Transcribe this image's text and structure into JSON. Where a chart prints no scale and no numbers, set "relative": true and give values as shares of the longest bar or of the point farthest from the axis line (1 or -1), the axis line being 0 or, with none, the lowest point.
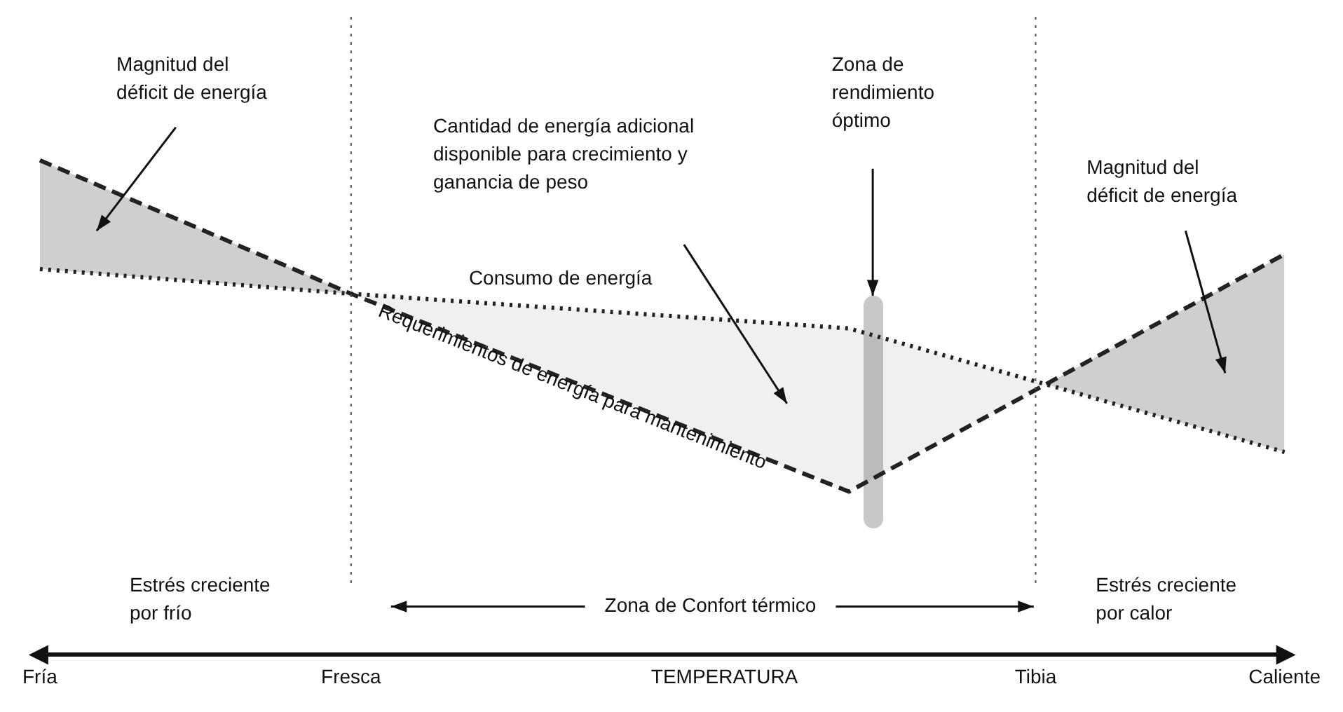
{
  "chart_data": {
    "type": "line",
    "relative": true,
    "categories": [
      "Fría",
      null,
      null,
      null,
      null,
      "Fresca",
      null,
      null,
      null,
      null,
      null,
      "TEMPERATURA",
      null,
      null,
      null,
      null,
      "Tibia",
      null,
      null,
      null,
      "Caliente"
    ],
    "series": [
      {
        "name": "Requerimientos de energía para mantenimiento",
        "color": "#222222",
        "line_style": "dashed",
        "values": [
          1,
          null,
          null,
          null,
          null,
          0.73,
          null,
          null,
          null,
          null,
          null,
          null,
          null,
          0.33,
          null,
          null,
          null,
          null,
          null,
          null,
          0.81
        ]
      },
      {
        "name": "Consumo de energía",
        "color": "#222222",
        "line_style": "dotted",
        "values": [
          0.78,
          null,
          null,
          null,
          null,
          0.73,
          null,
          null,
          null,
          null,
          null,
          null,
          null,
          0.66,
          null,
          null,
          null,
          null,
          null,
          null,
          0.41
        ]
      }
    ],
    "ref_lines": [
      {
        "axis": "x",
        "value": "Fresca",
        "line_style": "dotted",
        "color": "#555555"
      },
      {
        "axis": "x",
        "value": "Tibia",
        "line_style": "dotted",
        "color": "#555555"
      }
    ],
    "annotations": [
      "Magnitud del\ndéficit de energía",
      "Cantidad de energía adicional\ndisponible para crecimiento y\nganancia de peso",
      "Magnitud del\ndéficit de energía",
      "Estrés creciente\npor frío",
      "Zona de Confort térmico",
      "Estrés creciente\npor calor",
      "Zona de\nrendimiento\nóptimo"
    ],
    "grid": false,
    "legend": false,
    "marker": "none"
  }
}
